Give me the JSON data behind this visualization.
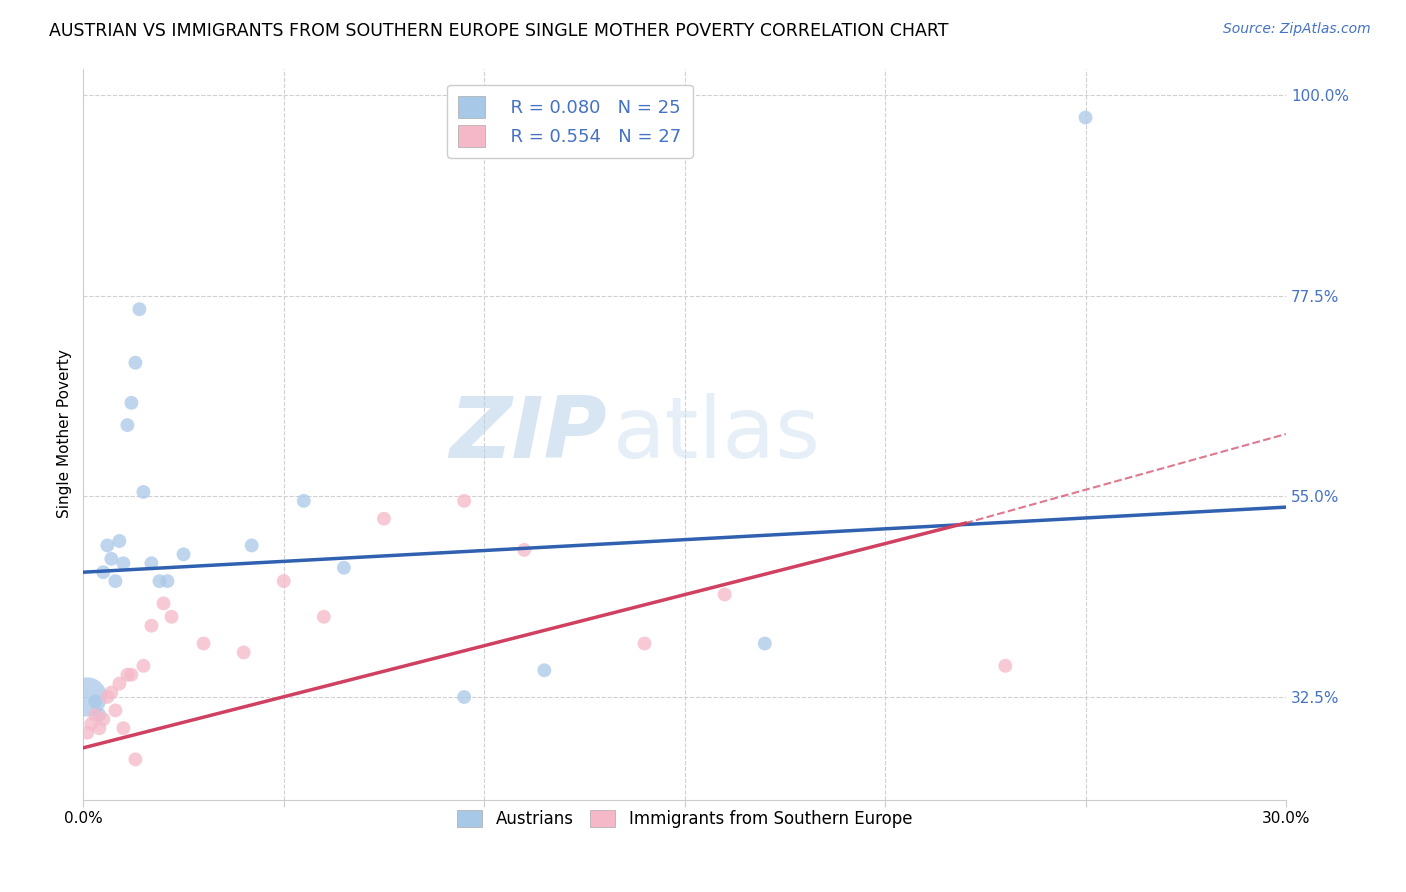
{
  "title": "AUSTRIAN VS IMMIGRANTS FROM SOUTHERN EUROPE SINGLE MOTHER POVERTY CORRELATION CHART",
  "source": "Source: ZipAtlas.com",
  "ylabel": "Single Mother Poverty",
  "xlim": [
    0.0,
    0.3
  ],
  "ylim": [
    0.21,
    1.03
  ],
  "yticks_right": [
    0.325,
    0.55,
    0.775,
    1.0
  ],
  "yticklabels_right": [
    "32.5%",
    "55.0%",
    "77.5%",
    "100.0%"
  ],
  "legend_r_blue": "R = 0.080",
  "legend_n_blue": "N = 25",
  "legend_r_pink": "R = 0.554",
  "legend_n_pink": "N = 27",
  "blue_color": "#a8c8e8",
  "pink_color": "#f5b8c8",
  "blue_line_color": "#3060b0",
  "pink_line_color": "#d04060",
  "grid_color": "#d0d0d0",
  "background_color": "#ffffff",
  "austrians_x": [
    0.001,
    0.003,
    0.004,
    0.005,
    0.006,
    0.007,
    0.008,
    0.009,
    0.01,
    0.011,
    0.012,
    0.013,
    0.014,
    0.015,
    0.017,
    0.019,
    0.021,
    0.025,
    0.042,
    0.055,
    0.065,
    0.095,
    0.115,
    0.17,
    0.25
  ],
  "austrians_y": [
    0.325,
    0.32,
    0.305,
    0.465,
    0.495,
    0.48,
    0.455,
    0.5,
    0.475,
    0.63,
    0.655,
    0.7,
    0.76,
    0.555,
    0.475,
    0.455,
    0.455,
    0.485,
    0.495,
    0.545,
    0.47,
    0.325,
    0.355,
    0.385,
    0.975
  ],
  "austrians_size": [
    800,
    100,
    100,
    100,
    100,
    100,
    100,
    100,
    100,
    100,
    100,
    100,
    100,
    100,
    100,
    100,
    100,
    100,
    100,
    100,
    100,
    100,
    100,
    100,
    100
  ],
  "immigrants_x": [
    0.001,
    0.002,
    0.003,
    0.004,
    0.005,
    0.006,
    0.007,
    0.008,
    0.009,
    0.01,
    0.011,
    0.012,
    0.013,
    0.015,
    0.017,
    0.02,
    0.022,
    0.03,
    0.04,
    0.05,
    0.06,
    0.075,
    0.095,
    0.11,
    0.14,
    0.16,
    0.23
  ],
  "immigrants_y": [
    0.285,
    0.295,
    0.305,
    0.29,
    0.3,
    0.325,
    0.33,
    0.31,
    0.34,
    0.29,
    0.35,
    0.35,
    0.255,
    0.36,
    0.405,
    0.43,
    0.415,
    0.385,
    0.375,
    0.455,
    0.415,
    0.525,
    0.545,
    0.49,
    0.385,
    0.44,
    0.36
  ],
  "immigrants_size": [
    100,
    100,
    100,
    100,
    100,
    100,
    100,
    100,
    100,
    100,
    100,
    100,
    100,
    100,
    100,
    100,
    100,
    100,
    100,
    100,
    100,
    100,
    100,
    100,
    100,
    100,
    100
  ],
  "blue_trend": [
    0.0,
    0.3,
    0.465,
    0.538
  ],
  "pink_trend_solid": [
    0.0,
    0.22,
    0.268,
    0.52
  ],
  "pink_trend_dashed": [
    0.22,
    0.3,
    0.52,
    0.62
  ],
  "watermark_zip": "ZIP",
  "watermark_atlas": "atlas",
  "figsize": [
    14.06,
    8.92
  ],
  "dpi": 100
}
